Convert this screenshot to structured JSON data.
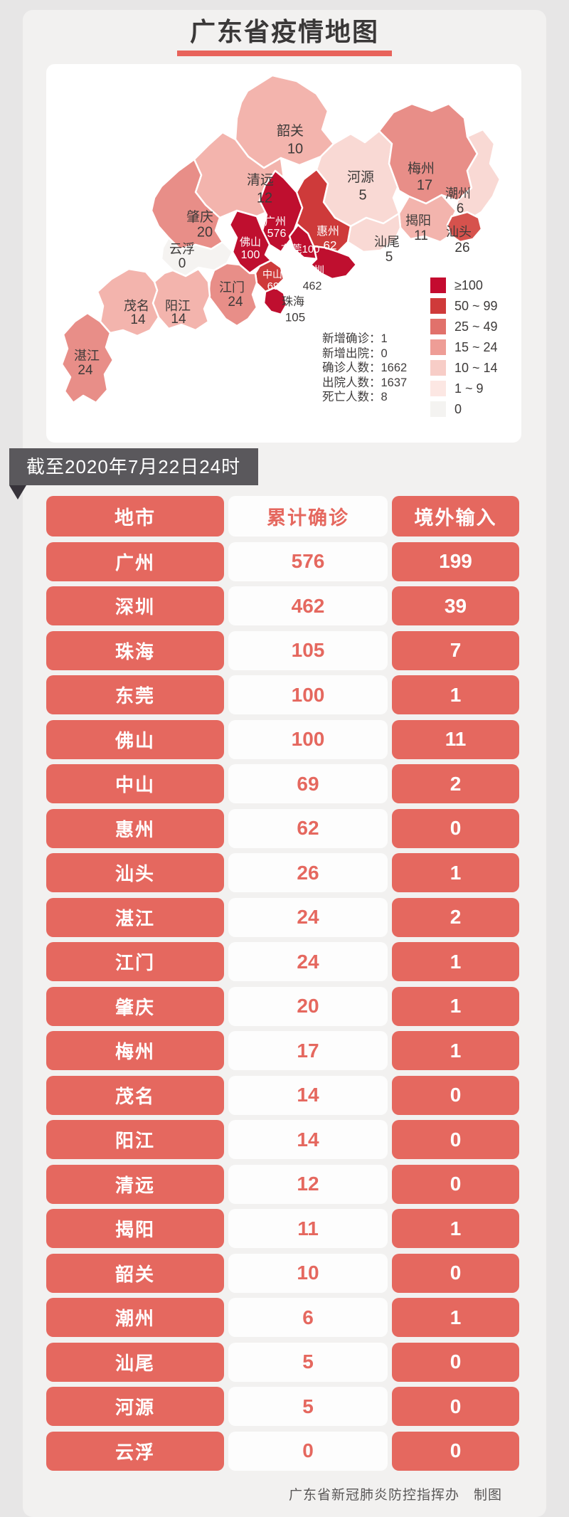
{
  "title": "广东省疫情地图",
  "as_of": "截至2020年7月22日24时",
  "footer": "广东省新冠肺炎防控指挥办　制图",
  "colors": {
    "accent_red": "#e5685f",
    "title_underline": "#e8635b",
    "ribbon_bg": "#5a585c",
    "page_bg": "#f2f1f0",
    "map_card_bg": "#ffffff",
    "dark_text": "#3d3a39"
  },
  "map": {
    "regions": [
      {
        "name": "韶关",
        "value": 10,
        "fill": "#f3b4ad",
        "label_color": "dark"
      },
      {
        "name": "清远",
        "value": 12,
        "fill": "#f3b4ad",
        "label_color": "dark"
      },
      {
        "name": "河源",
        "value": 5,
        "fill": "#f9d9d4",
        "label_color": "dark"
      },
      {
        "name": "梅州",
        "value": 17,
        "fill": "#e88e88",
        "label_color": "dark"
      },
      {
        "name": "潮州",
        "value": 6,
        "fill": "#f9d9d4",
        "label_color": "dark"
      },
      {
        "name": "揭阳",
        "value": 11,
        "fill": "#f3b4ad",
        "label_color": "dark"
      },
      {
        "name": "汕头",
        "value": 26,
        "fill": "#d6524d",
        "label_color": "dark"
      },
      {
        "name": "汕尾",
        "value": 5,
        "fill": "#f9d9d4",
        "label_color": "dark"
      },
      {
        "name": "惠州",
        "value": 62,
        "fill": "#ce3a3a",
        "label_color": "white"
      },
      {
        "name": "广州",
        "value": 576,
        "fill": "#bf0f2f",
        "label_color": "white"
      },
      {
        "name": "东莞",
        "value": 100,
        "fill": "#bf0f2f",
        "label_color": "white"
      },
      {
        "name": "深圳",
        "value": 462,
        "fill": "#bf0f2f",
        "label_color": "mixed"
      },
      {
        "name": "中山",
        "value": 69,
        "fill": "#ce3a3a",
        "label_color": "white"
      },
      {
        "name": "珠海",
        "value": 105,
        "fill": "#bf0f2f",
        "label_color": "dark"
      },
      {
        "name": "佛山",
        "value": 100,
        "fill": "#bf0f2f",
        "label_color": "white"
      },
      {
        "name": "肇庆",
        "value": 20,
        "fill": "#e88e88",
        "label_color": "dark"
      },
      {
        "name": "云浮",
        "value": 0,
        "fill": "#f5f3f1",
        "label_color": "dark"
      },
      {
        "name": "江门",
        "value": 24,
        "fill": "#e88e88",
        "label_color": "dark"
      },
      {
        "name": "阳江",
        "value": 14,
        "fill": "#f3b4ad",
        "label_color": "dark"
      },
      {
        "name": "茂名",
        "value": 14,
        "fill": "#f3b4ad",
        "label_color": "dark"
      },
      {
        "name": "湛江",
        "value": 24,
        "fill": "#e88e88",
        "label_color": "dark"
      }
    ]
  },
  "stats": [
    {
      "label": "新增确诊",
      "value": "1"
    },
    {
      "label": "新增出院",
      "value": "0"
    },
    {
      "label": "确诊人数",
      "value": "1662"
    },
    {
      "label": "出院人数",
      "value": "1637"
    },
    {
      "label": "死亡人数",
      "value": "8"
    }
  ],
  "legend": [
    {
      "label": "≥100",
      "color": "#c40b2f"
    },
    {
      "label": "50 ~ 99",
      "color": "#cf3a3a"
    },
    {
      "label": "25 ~ 49",
      "color": "#e1716b"
    },
    {
      "label": "15 ~ 24",
      "color": "#ee9d96"
    },
    {
      "label": "10 ~ 14",
      "color": "#f7cdc7"
    },
    {
      "label": "1 ~ 9",
      "color": "#fce7e3"
    },
    {
      "label": "0",
      "color": "#f4f3f1"
    }
  ],
  "table": {
    "headers": [
      "地市",
      "累计确诊",
      "境外输入"
    ],
    "rows": [
      {
        "city": "广州",
        "confirmed": "576",
        "imported": "199"
      },
      {
        "city": "深圳",
        "confirmed": "462",
        "imported": "39"
      },
      {
        "city": "珠海",
        "confirmed": "105",
        "imported": "7"
      },
      {
        "city": "东莞",
        "confirmed": "100",
        "imported": "1"
      },
      {
        "city": "佛山",
        "confirmed": "100",
        "imported": "11"
      },
      {
        "city": "中山",
        "confirmed": "69",
        "imported": "2"
      },
      {
        "city": "惠州",
        "confirmed": "62",
        "imported": "0"
      },
      {
        "city": "汕头",
        "confirmed": "26",
        "imported": "1"
      },
      {
        "city": "湛江",
        "confirmed": "24",
        "imported": "2"
      },
      {
        "city": "江门",
        "confirmed": "24",
        "imported": "1"
      },
      {
        "city": "肇庆",
        "confirmed": "20",
        "imported": "1"
      },
      {
        "city": "梅州",
        "confirmed": "17",
        "imported": "1"
      },
      {
        "city": "茂名",
        "confirmed": "14",
        "imported": "0"
      },
      {
        "city": "阳江",
        "confirmed": "14",
        "imported": "0"
      },
      {
        "city": "清远",
        "confirmed": "12",
        "imported": "0"
      },
      {
        "city": "揭阳",
        "confirmed": "11",
        "imported": "1"
      },
      {
        "city": "韶关",
        "confirmed": "10",
        "imported": "0"
      },
      {
        "city": "潮州",
        "confirmed": "6",
        "imported": "1"
      },
      {
        "city": "汕尾",
        "confirmed": "5",
        "imported": "0"
      },
      {
        "city": "河源",
        "confirmed": "5",
        "imported": "0"
      },
      {
        "city": "云浮",
        "confirmed": "0",
        "imported": "0"
      }
    ]
  },
  "chart_data": {
    "type": "table",
    "title": "广东省疫情地图",
    "as_of": "截至2020年7月22日24时",
    "columns": [
      "地市",
      "累计确诊",
      "境外输入"
    ],
    "rows": [
      [
        "广州",
        576,
        199
      ],
      [
        "深圳",
        462,
        39
      ],
      [
        "珠海",
        105,
        7
      ],
      [
        "东莞",
        100,
        1
      ],
      [
        "佛山",
        100,
        11
      ],
      [
        "中山",
        69,
        2
      ],
      [
        "惠州",
        62,
        0
      ],
      [
        "汕头",
        26,
        1
      ],
      [
        "湛江",
        24,
        2
      ],
      [
        "江门",
        24,
        1
      ],
      [
        "肇庆",
        20,
        1
      ],
      [
        "梅州",
        17,
        1
      ],
      [
        "茂名",
        14,
        0
      ],
      [
        "阳江",
        14,
        0
      ],
      [
        "清远",
        12,
        0
      ],
      [
        "揭阳",
        11,
        1
      ],
      [
        "韶关",
        10,
        0
      ],
      [
        "潮州",
        6,
        1
      ],
      [
        "汕尾",
        5,
        0
      ],
      [
        "河源",
        5,
        0
      ],
      [
        "云浮",
        0,
        0
      ]
    ],
    "summary": {
      "新增确诊": 1,
      "新增出院": 0,
      "确诊人数": 1662,
      "出院人数": 1637,
      "死亡人数": 8
    },
    "choropleth_buckets": [
      "≥100",
      "50~99",
      "25~49",
      "15~24",
      "10~14",
      "1~9",
      "0"
    ],
    "legend_position": "right",
    "credit": "广东省新冠肺炎防控指挥办　制图"
  }
}
